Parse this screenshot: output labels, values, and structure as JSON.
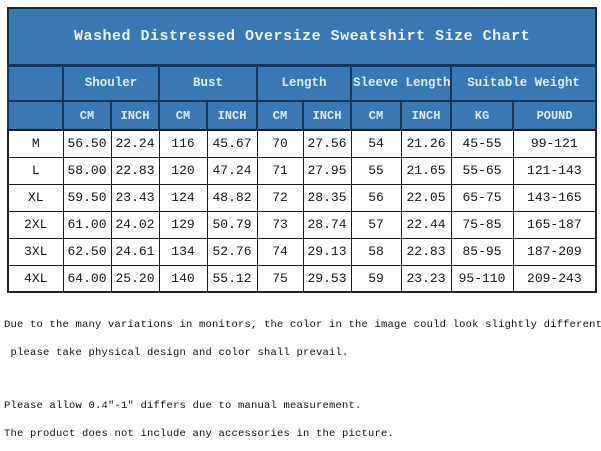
{
  "title": "Washed Distressed Oversize Sweatshirt Size Chart",
  "table": {
    "groups": [
      {
        "label": "Shouler"
      },
      {
        "label": "Bust"
      },
      {
        "label": "Length"
      },
      {
        "label": "Sleeve Length"
      },
      {
        "label": "Suitable Weight"
      }
    ],
    "subheaders": [
      "CM",
      "INCH",
      "CM",
      "INCH",
      "CM",
      "INCH",
      "CM",
      "INCH",
      "KG",
      "POUND"
    ],
    "rows": [
      {
        "size": "M",
        "cells": [
          "56.50",
          "22.24",
          "116",
          "45.67",
          "70",
          "27.56",
          "54",
          "21.26",
          "45-55",
          "99-121"
        ]
      },
      {
        "size": "L",
        "cells": [
          "58.00",
          "22.83",
          "120",
          "47.24",
          "71",
          "27.95",
          "55",
          "21.65",
          "55-65",
          "121-143"
        ]
      },
      {
        "size": "XL",
        "cells": [
          "59.50",
          "23.43",
          "124",
          "48.82",
          "72",
          "28.35",
          "56",
          "22.05",
          "65-75",
          "143-165"
        ]
      },
      {
        "size": "2XL",
        "cells": [
          "61.00",
          "24.02",
          "129",
          "50.79",
          "73",
          "28.74",
          "57",
          "22.44",
          "75-85",
          "165-187"
        ]
      },
      {
        "size": "3XL",
        "cells": [
          "62.50",
          "24.61",
          "134",
          "52.76",
          "74",
          "29.13",
          "58",
          "22.83",
          "85-95",
          "187-209"
        ]
      },
      {
        "size": "4XL",
        "cells": [
          "64.00",
          "25.20",
          "140",
          "55.12",
          "75",
          "29.53",
          "59",
          "23.23",
          "95-110",
          "209-243"
        ]
      }
    ]
  },
  "notes": [
    "Due to the many variations in monitors, the color in the image could look slightly different,",
    " please take physical design and color shall prevail.",
    "Please allow 0.4\"-1\" differs due to manual measurement.",
    "The product does not include any accessories in the picture."
  ],
  "colors": {
    "header_blue": "#3878b5",
    "header_border_navy": "#16365e",
    "grid_black": "#1c1c1c",
    "header_text": "#d9eafb",
    "title_text": "#eaf3fc",
    "cell_text": "#161616",
    "page_background": "#ffffff"
  }
}
